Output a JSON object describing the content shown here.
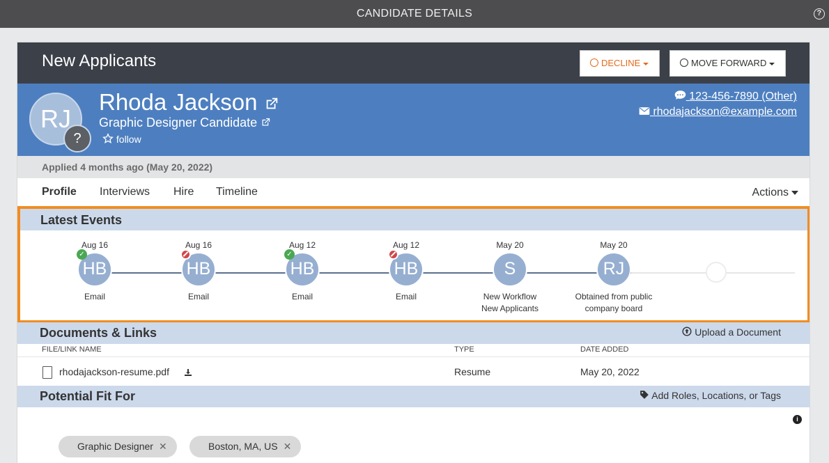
{
  "topbar": {
    "title": "CANDIDATE DETAILS",
    "help_icon": "question-circle-icon"
  },
  "stage": {
    "title": "New Applicants",
    "decline_label": "DECLINE",
    "forward_label": "MOVE FORWARD"
  },
  "candidate": {
    "initials": "RJ",
    "badge": "?",
    "name": "Rhoda Jackson",
    "role": "Graphic Designer Candidate",
    "follow_label": "follow",
    "phone": "123-456-7890 (Other)",
    "email": "rhodajackson@example.com"
  },
  "applied": "Applied 4 months ago (May 20, 2022)",
  "tabs": [
    {
      "label": "Profile",
      "active": true
    },
    {
      "label": "Interviews"
    },
    {
      "label": "Hire"
    },
    {
      "label": "Timeline"
    }
  ],
  "actions_label": "Actions",
  "latest_events": {
    "title": "Latest Events",
    "events": [
      {
        "date": "Aug 16",
        "initials": "HB",
        "label": "Email",
        "status": "ok"
      },
      {
        "date": "Aug 16",
        "initials": "HB",
        "label": "Email",
        "status": "no"
      },
      {
        "date": "Aug 12",
        "initials": "HB",
        "label": "Email",
        "status": "ok"
      },
      {
        "date": "Aug 12",
        "initials": "HB",
        "label": "Email",
        "status": "no"
      },
      {
        "date": "May 20",
        "initials": "S",
        "label": "New Workflow",
        "label2": "New Applicants"
      },
      {
        "date": "May 20",
        "initials": "RJ",
        "label": "Obtained from public",
        "label2": "company board"
      }
    ]
  },
  "documents": {
    "title": "Documents & Links",
    "upload_label": "Upload a Document",
    "columns": [
      "FILE/LINK NAME",
      "TYPE",
      "DATE ADDED"
    ],
    "rows": [
      {
        "name": "rhodajackson-resume.pdf",
        "type": "Resume",
        "date": "May 20, 2022"
      }
    ]
  },
  "fit": {
    "title": "Potential Fit For",
    "add_label": "Add Roles, Locations, or Tags",
    "chips": [
      "Graphic Designer",
      "Boston, MA, US"
    ]
  },
  "colors": {
    "hero": "#4d7fc0",
    "stage_bar": "#3c4048",
    "highlight": "#f28c1f",
    "decline": "#e36b1f"
  }
}
